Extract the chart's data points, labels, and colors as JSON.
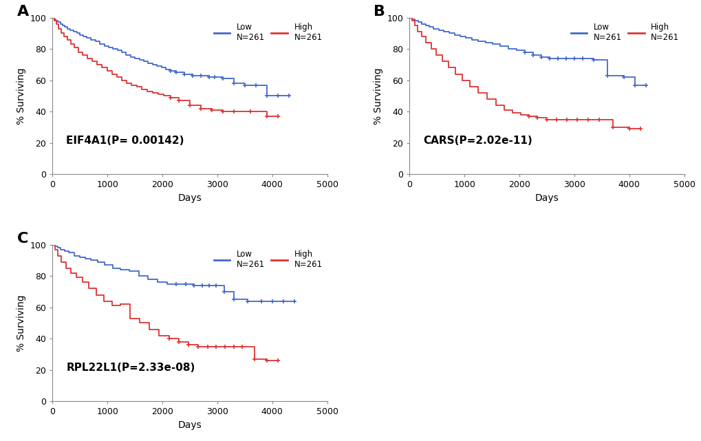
{
  "panels": [
    {
      "label": "A",
      "gene": "EIF4A1",
      "pvalue": "P= 0.00142",
      "blue_curve": {
        "times": [
          0,
          30,
          60,
          100,
          140,
          180,
          220,
          270,
          320,
          380,
          440,
          500,
          560,
          620,
          700,
          780,
          860,
          940,
          1020,
          1100,
          1180,
          1260,
          1340,
          1420,
          1500,
          1580,
          1660,
          1740,
          1820,
          1900,
          1980,
          2060,
          2150,
          2250,
          2400,
          2550,
          2700,
          2850,
          2950,
          3100,
          3300,
          3500,
          3700,
          3900,
          4100,
          4300
        ],
        "surv": [
          100,
          99,
          98,
          97,
          96,
          95,
          94,
          93,
          92,
          91,
          90,
          89,
          88,
          87,
          86,
          85,
          83,
          82,
          81,
          80,
          79,
          78,
          76,
          75,
          74,
          73,
          72,
          71,
          70,
          69,
          68,
          67,
          66,
          65,
          64,
          63,
          63,
          62,
          62,
          61,
          58,
          57,
          57,
          50,
          50,
          50
        ],
        "censor_times": [
          2150,
          2250,
          2400,
          2550,
          2700,
          2850,
          2950,
          3100,
          3300,
          3500,
          3700,
          3900,
          4100,
          4300
        ],
        "censor_survs": [
          66,
          65,
          64,
          63,
          63,
          62,
          62,
          61,
          58,
          57,
          57,
          50,
          50,
          50
        ]
      },
      "red_curve": {
        "times": [
          0,
          30,
          70,
          110,
          160,
          210,
          270,
          330,
          400,
          470,
          550,
          630,
          720,
          810,
          900,
          990,
          1080,
          1170,
          1260,
          1350,
          1440,
          1530,
          1620,
          1720,
          1820,
          1920,
          2020,
          2150,
          2300,
          2500,
          2700,
          2900,
          3100,
          3300,
          3600,
          3900,
          4100
        ],
        "surv": [
          100,
          98,
          96,
          93,
          90,
          88,
          86,
          83,
          81,
          78,
          76,
          74,
          72,
          70,
          68,
          66,
          64,
          62,
          60,
          58,
          57,
          56,
          54,
          53,
          52,
          51,
          50,
          49,
          47,
          44,
          42,
          41,
          40,
          40,
          40,
          37,
          37
        ],
        "censor_times": [
          2150,
          2300,
          2500,
          2700,
          2900,
          3100,
          3300,
          3600,
          3900,
          4100
        ],
        "censor_survs": [
          49,
          47,
          44,
          42,
          41,
          40,
          40,
          40,
          37,
          37
        ]
      }
    },
    {
      "label": "B",
      "gene": "CARS",
      "pvalue": "P=2.02e-11",
      "blue_curve": {
        "times": [
          0,
          50,
          100,
          160,
          220,
          290,
          360,
          440,
          530,
          620,
          720,
          820,
          920,
          1020,
          1130,
          1250,
          1380,
          1510,
          1650,
          1800,
          1950,
          2100,
          2250,
          2400,
          2550,
          2700,
          2850,
          3000,
          3150,
          3350,
          3600,
          3900,
          4100,
          4300
        ],
        "surv": [
          100,
          99,
          98,
          97,
          96,
          95,
          94,
          93,
          92,
          91,
          90,
          89,
          88,
          87,
          86,
          85,
          84,
          83,
          82,
          80,
          79,
          78,
          76,
          75,
          74,
          74,
          74,
          74,
          74,
          73,
          63,
          62,
          57,
          57
        ],
        "censor_times": [
          2100,
          2250,
          2400,
          2550,
          2700,
          2850,
          3000,
          3150,
          3350,
          3600,
          3900,
          4100,
          4300
        ],
        "censor_survs": [
          78,
          76,
          75,
          74,
          74,
          74,
          74,
          74,
          73,
          63,
          62,
          57,
          57
        ]
      },
      "red_curve": {
        "times": [
          0,
          40,
          90,
          150,
          220,
          300,
          390,
          490,
          600,
          710,
          830,
          960,
          1100,
          1250,
          1410,
          1570,
          1730,
          1880,
          2030,
          2180,
          2330,
          2500,
          2680,
          2860,
          3050,
          3250,
          3450,
          3700,
          4000,
          4200
        ],
        "surv": [
          100,
          98,
          95,
          91,
          88,
          84,
          80,
          76,
          72,
          68,
          64,
          60,
          56,
          52,
          48,
          44,
          41,
          39,
          38,
          37,
          36,
          35,
          35,
          35,
          35,
          35,
          35,
          30,
          29,
          29
        ],
        "censor_times": [
          2180,
          2330,
          2500,
          2680,
          2860,
          3050,
          3250,
          3450,
          3700,
          4000,
          4200
        ],
        "censor_survs": [
          37,
          36,
          35,
          35,
          35,
          35,
          35,
          35,
          30,
          29,
          29
        ]
      }
    },
    {
      "label": "C",
      "gene": "RPL22L1",
      "pvalue": "P=2.33e-08",
      "blue_curve": {
        "times": [
          0,
          40,
          90,
          150,
          220,
          300,
          390,
          490,
          590,
          700,
          820,
          950,
          1090,
          1240,
          1400,
          1570,
          1740,
          1910,
          2080,
          2250,
          2420,
          2580,
          2720,
          2850,
          2980,
          3120,
          3300,
          3550,
          3800,
          4000,
          4200,
          4400
        ],
        "surv": [
          100,
          99,
          98,
          97,
          96,
          95,
          93,
          92,
          91,
          90,
          89,
          87,
          85,
          84,
          83,
          80,
          78,
          76,
          75,
          75,
          75,
          74,
          74,
          74,
          74,
          70,
          65,
          64,
          64,
          64,
          64,
          64
        ],
        "censor_times": [
          2250,
          2420,
          2580,
          2720,
          2850,
          2980,
          3120,
          3300,
          3550,
          3800,
          4000,
          4200,
          4400
        ],
        "censor_survs": [
          75,
          75,
          74,
          74,
          74,
          74,
          70,
          65,
          64,
          64,
          64,
          64,
          64
        ]
      },
      "red_curve": {
        "times": [
          0,
          40,
          90,
          160,
          240,
          330,
          430,
          540,
          660,
          790,
          930,
          1080,
          1240,
          1410,
          1580,
          1760,
          1940,
          2120,
          2300,
          2480,
          2650,
          2820,
          2980,
          3140,
          3300,
          3450,
          3680,
          3900,
          4100
        ],
        "surv": [
          100,
          97,
          93,
          89,
          85,
          82,
          79,
          76,
          72,
          68,
          64,
          61,
          62,
          53,
          50,
          46,
          42,
          40,
          38,
          36,
          35,
          35,
          35,
          35,
          35,
          35,
          27,
          26,
          26
        ],
        "censor_times": [
          2120,
          2300,
          2480,
          2650,
          2820,
          2980,
          3140,
          3300,
          3450,
          3680,
          3900,
          4100
        ],
        "censor_survs": [
          40,
          38,
          36,
          35,
          35,
          35,
          35,
          35,
          35,
          27,
          26,
          26
        ]
      }
    }
  ],
  "blue_color": "#4169CC",
  "red_color": "#DD3333",
  "xlabel": "Days",
  "ylabel": "% Surviving",
  "xlim": [
    0,
    5000
  ],
  "ylim": [
    0,
    100
  ],
  "xticks": [
    0,
    1000,
    2000,
    3000,
    4000,
    5000
  ],
  "yticks": [
    0,
    20,
    40,
    60,
    80,
    100
  ],
  "legend_low": "Low\nN=261",
  "legend_high": "High\nN=261",
  "background_color": "#ffffff"
}
